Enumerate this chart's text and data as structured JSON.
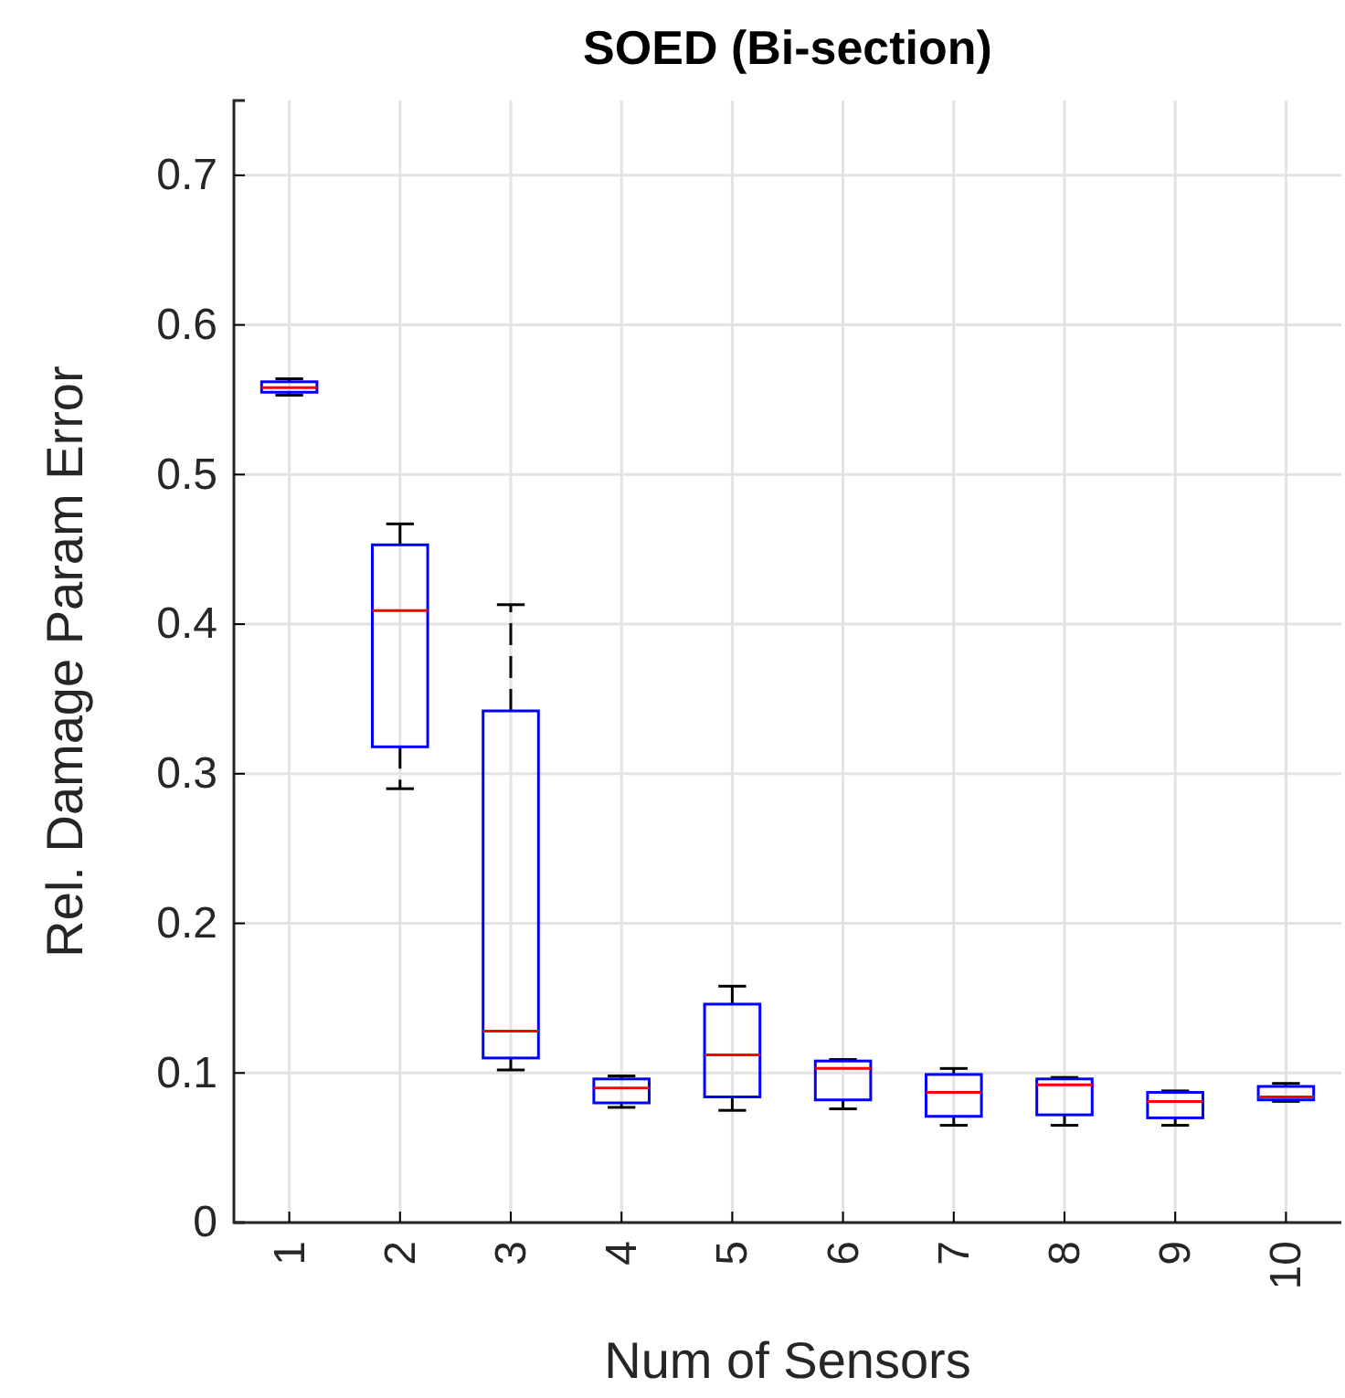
{
  "chart_data": {
    "type": "box",
    "title": "SOED (Bi-section)",
    "xlabel": "Num of Sensors",
    "ylabel": "Rel. Damage Param Error",
    "categories": [
      "1",
      "2",
      "3",
      "4",
      "5",
      "6",
      "7",
      "8",
      "9",
      "10"
    ],
    "color": "#0000ff",
    "boxes": [
      {
        "low": 0.553,
        "q1": 0.555,
        "median": 0.558,
        "q3": 0.562,
        "high": 0.564
      },
      {
        "low": 0.29,
        "q1": 0.318,
        "median": 0.409,
        "q3": 0.453,
        "high": 0.467
      },
      {
        "low": 0.102,
        "q1": 0.11,
        "median": 0.128,
        "q3": 0.342,
        "high": 0.413
      },
      {
        "low": 0.077,
        "q1": 0.08,
        "median": 0.09,
        "q3": 0.096,
        "high": 0.098
      },
      {
        "low": 0.075,
        "q1": 0.084,
        "median": 0.112,
        "q3": 0.146,
        "high": 0.158
      },
      {
        "low": 0.076,
        "q1": 0.082,
        "median": 0.103,
        "q3": 0.108,
        "high": 0.109
      },
      {
        "low": 0.065,
        "q1": 0.071,
        "median": 0.087,
        "q3": 0.099,
        "high": 0.103
      },
      {
        "low": 0.065,
        "q1": 0.072,
        "median": 0.092,
        "q3": 0.096,
        "high": 0.097
      },
      {
        "low": 0.065,
        "q1": 0.07,
        "median": 0.081,
        "q3": 0.087,
        "high": 0.088
      },
      {
        "low": 0.081,
        "q1": 0.082,
        "median": 0.084,
        "q3": 0.091,
        "high": 0.093
      }
    ],
    "ylim": [
      0,
      0.75
    ],
    "yticks": [
      0,
      0.1,
      0.2,
      0.3,
      0.4,
      0.5,
      0.6,
      0.7
    ],
    "grid": true
  }
}
